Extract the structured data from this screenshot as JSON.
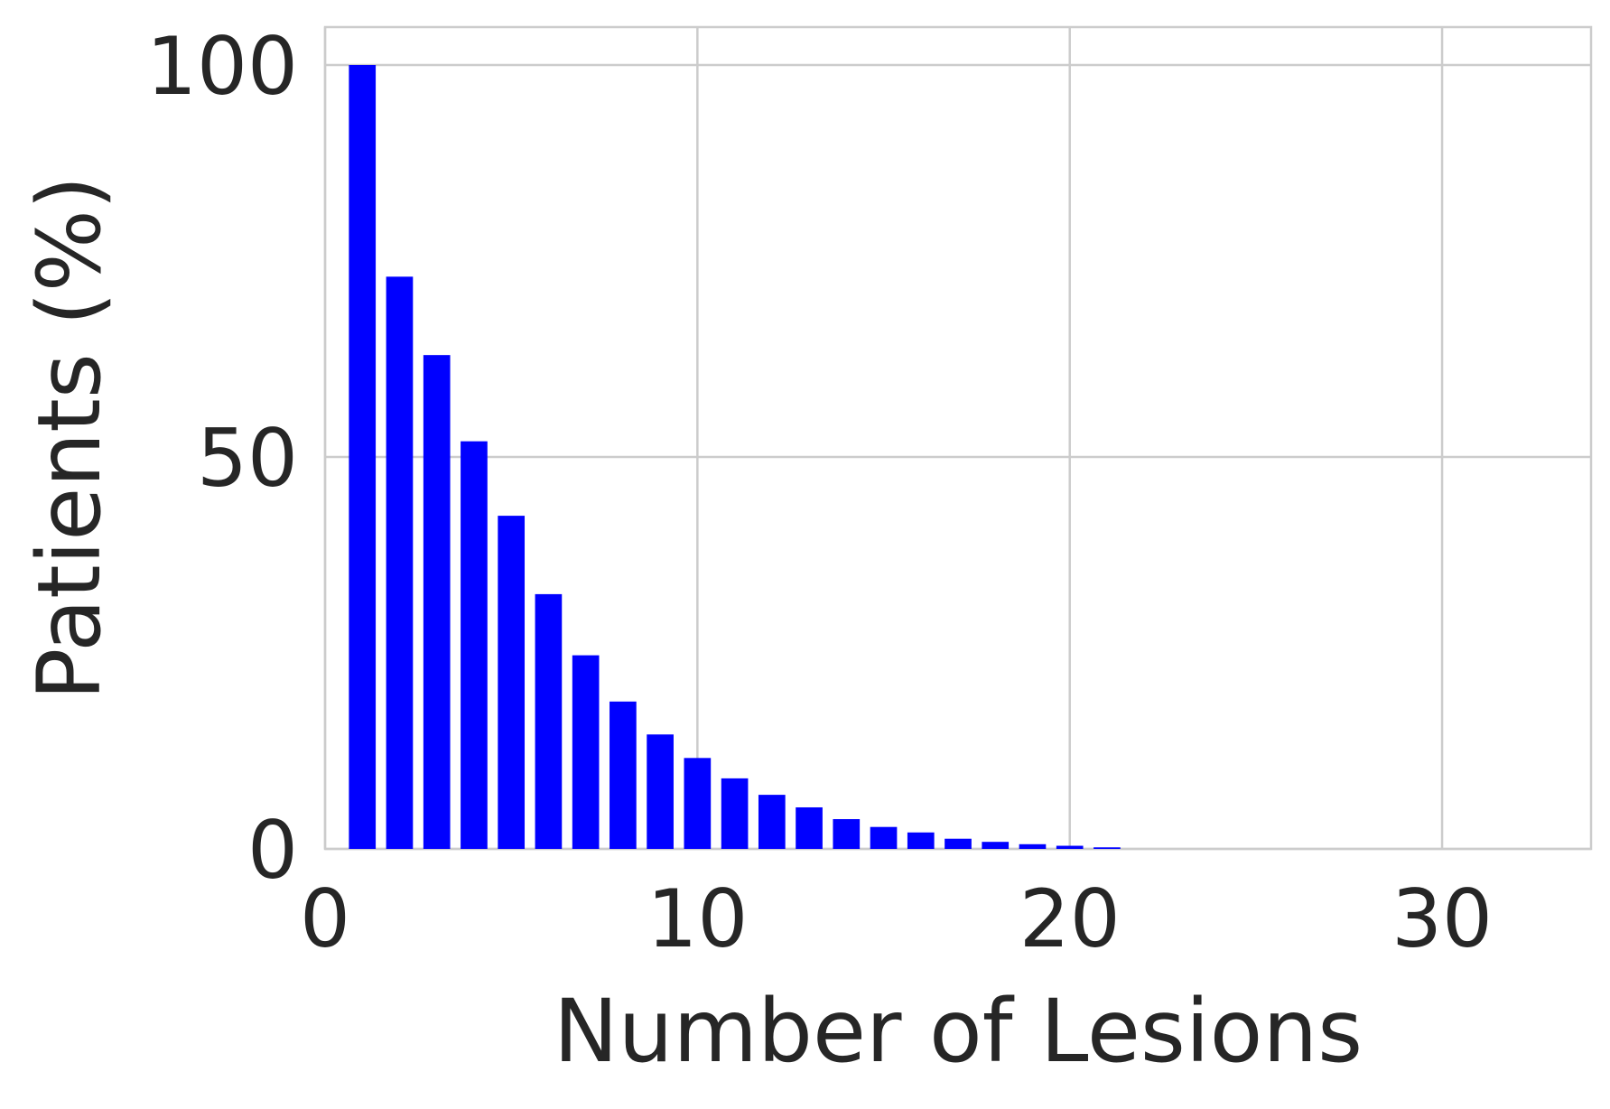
{
  "chart_data": {
    "type": "bar",
    "title": "",
    "xlabel": "Number of Lesions",
    "ylabel": "Patients (%)",
    "xlim": [
      0,
      34
    ],
    "ylim": [
      0,
      100
    ],
    "xticks": [
      0,
      10,
      20,
      30
    ],
    "xtick_labels": [
      "0",
      "10",
      "20",
      "30"
    ],
    "yticks": [
      0,
      50,
      100
    ],
    "ytick_labels": [
      "0",
      "50",
      "100"
    ],
    "grid": true,
    "bar_color": "#0000ff",
    "grid_color": "#cccccc",
    "text_color": "#262626",
    "x": [
      1,
      2,
      3,
      4,
      5,
      6,
      7,
      8,
      9,
      10,
      11,
      12,
      13,
      14,
      15,
      16,
      17,
      18,
      19,
      20,
      21
    ],
    "values": [
      100,
      73,
      63,
      52,
      42.5,
      32.5,
      24.7,
      18.8,
      14.6,
      11.6,
      9,
      6.9,
      5.3,
      3.8,
      2.8,
      2.1,
      1.3,
      0.9,
      0.6,
      0.4,
      0.2
    ]
  }
}
